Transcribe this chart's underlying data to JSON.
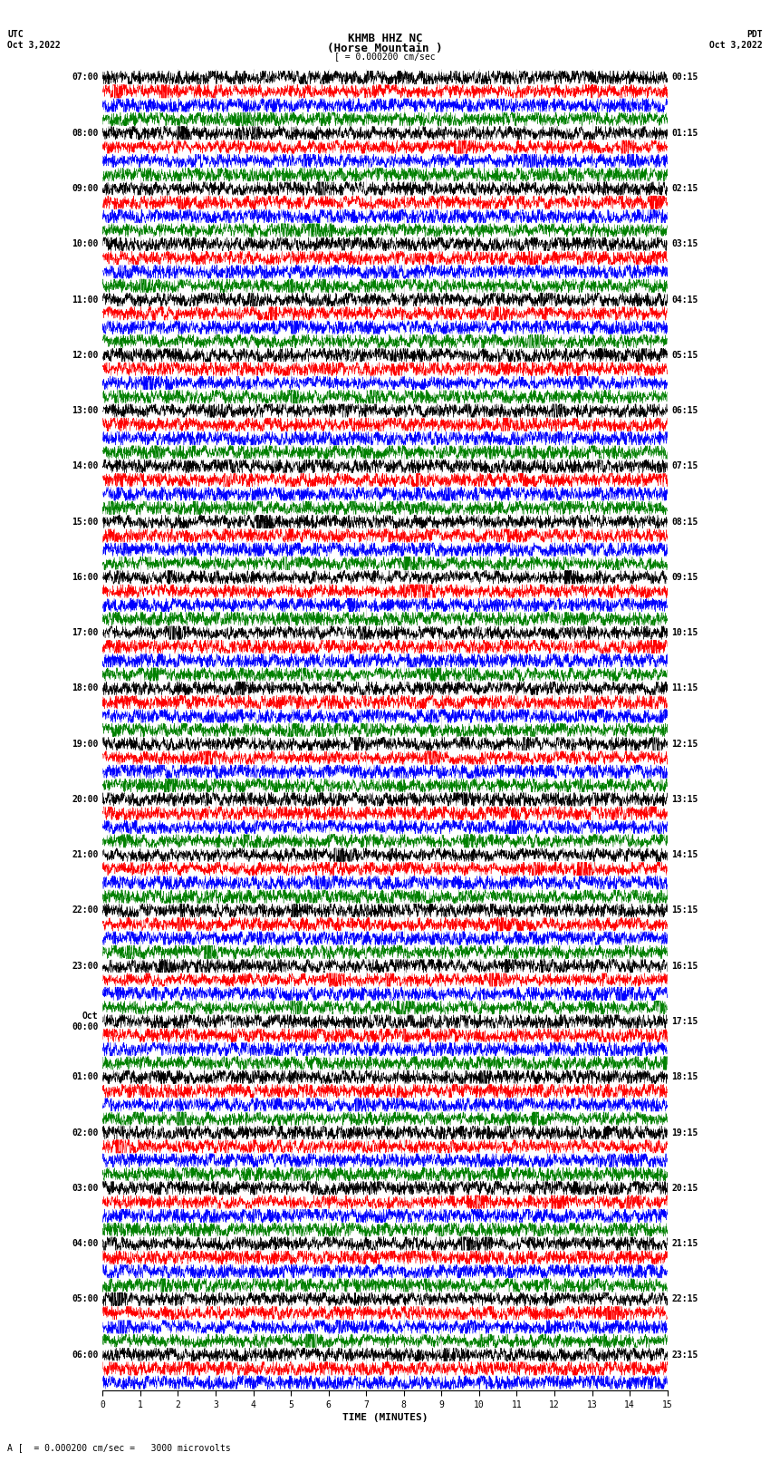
{
  "title_line1": "KHMB HHZ NC",
  "title_line2": "(Horse Mountain )",
  "scale_label": "[ = 0.000200 cm/sec",
  "utc_label": "UTC\nOct 3,2022",
  "pdt_label": "PDT\nOct 3,2022",
  "xlabel": "TIME (MINUTES)",
  "footnote": "A [  = 0.000200 cm/sec =   3000 microvolts",
  "left_times": [
    "07:00",
    "",
    "",
    "",
    "08:00",
    "",
    "",
    "",
    "09:00",
    "",
    "",
    "",
    "10:00",
    "",
    "",
    "",
    "11:00",
    "",
    "",
    "",
    "12:00",
    "",
    "",
    "",
    "13:00",
    "",
    "",
    "",
    "14:00",
    "",
    "",
    "",
    "15:00",
    "",
    "",
    "",
    "16:00",
    "",
    "",
    "",
    "17:00",
    "",
    "",
    "",
    "18:00",
    "",
    "",
    "",
    "19:00",
    "",
    "",
    "",
    "20:00",
    "",
    "",
    "",
    "21:00",
    "",
    "",
    "",
    "22:00",
    "",
    "",
    "",
    "23:00",
    "",
    "",
    "",
    "Oct\n00:00",
    "",
    "",
    "",
    "01:00",
    "",
    "",
    "",
    "02:00",
    "",
    "",
    "",
    "03:00",
    "",
    "",
    "",
    "04:00",
    "",
    "",
    "",
    "05:00",
    "",
    "",
    "",
    "06:00",
    "",
    ""
  ],
  "right_times": [
    "00:15",
    "",
    "",
    "",
    "01:15",
    "",
    "",
    "",
    "02:15",
    "",
    "",
    "",
    "03:15",
    "",
    "",
    "",
    "04:15",
    "",
    "",
    "",
    "05:15",
    "",
    "",
    "",
    "06:15",
    "",
    "",
    "",
    "07:15",
    "",
    "",
    "",
    "08:15",
    "",
    "",
    "",
    "09:15",
    "",
    "",
    "",
    "10:15",
    "",
    "",
    "",
    "11:15",
    "",
    "",
    "",
    "12:15",
    "",
    "",
    "",
    "13:15",
    "",
    "",
    "",
    "14:15",
    "",
    "",
    "",
    "15:15",
    "",
    "",
    "",
    "16:15",
    "",
    "",
    "",
    "17:15",
    "",
    "",
    "",
    "18:15",
    "",
    "",
    "",
    "19:15",
    "",
    "",
    "",
    "20:15",
    "",
    "",
    "",
    "21:15",
    "",
    "",
    "",
    "22:15",
    "",
    "",
    "",
    "23:15",
    "",
    ""
  ],
  "colors": [
    "black",
    "red",
    "blue",
    "green"
  ],
  "n_rows": 95,
  "n_minutes": 15,
  "samples_per_row": 3000,
  "background": "white",
  "font_size_title": 9,
  "font_size_labels": 7,
  "font_size_ticks": 7,
  "font_size_footnote": 7
}
